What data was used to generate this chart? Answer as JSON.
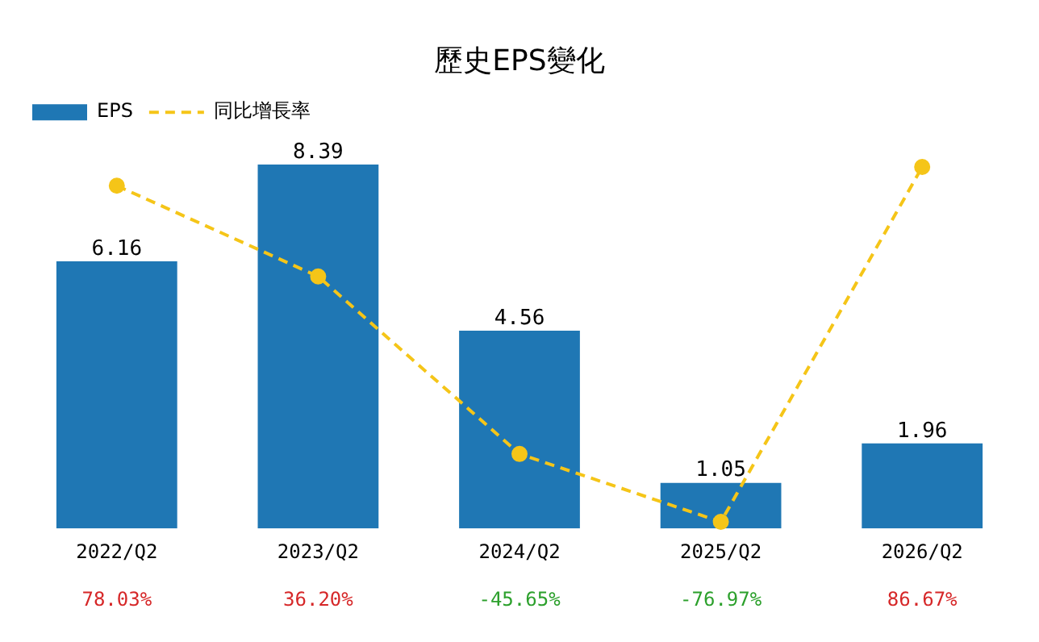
{
  "chart_data": {
    "type": "bar",
    "title": "歷史EPS變化",
    "categories": [
      "2022/Q2",
      "2023/Q2",
      "2024/Q2",
      "2025/Q2",
      "2026/Q2"
    ],
    "series": [
      {
        "name": "EPS",
        "color": "#1f77b4",
        "values": [
          6.16,
          8.39,
          4.56,
          1.05,
          1.96
        ]
      },
      {
        "name": "同比增長率",
        "type": "line",
        "axis": "y2",
        "color": "#f5c518",
        "line_style": "dashed",
        "marker": "circle",
        "values": [
          78.03,
          36.2,
          -45.65,
          -76.97,
          86.67
        ],
        "value_labels": [
          "78.03%",
          "36.20%",
          "-45.65%",
          "-76.97%",
          "86.67%"
        ]
      }
    ],
    "data_labels": true,
    "legend": "top left",
    "tick_labels": "x",
    "grid": false
  }
}
